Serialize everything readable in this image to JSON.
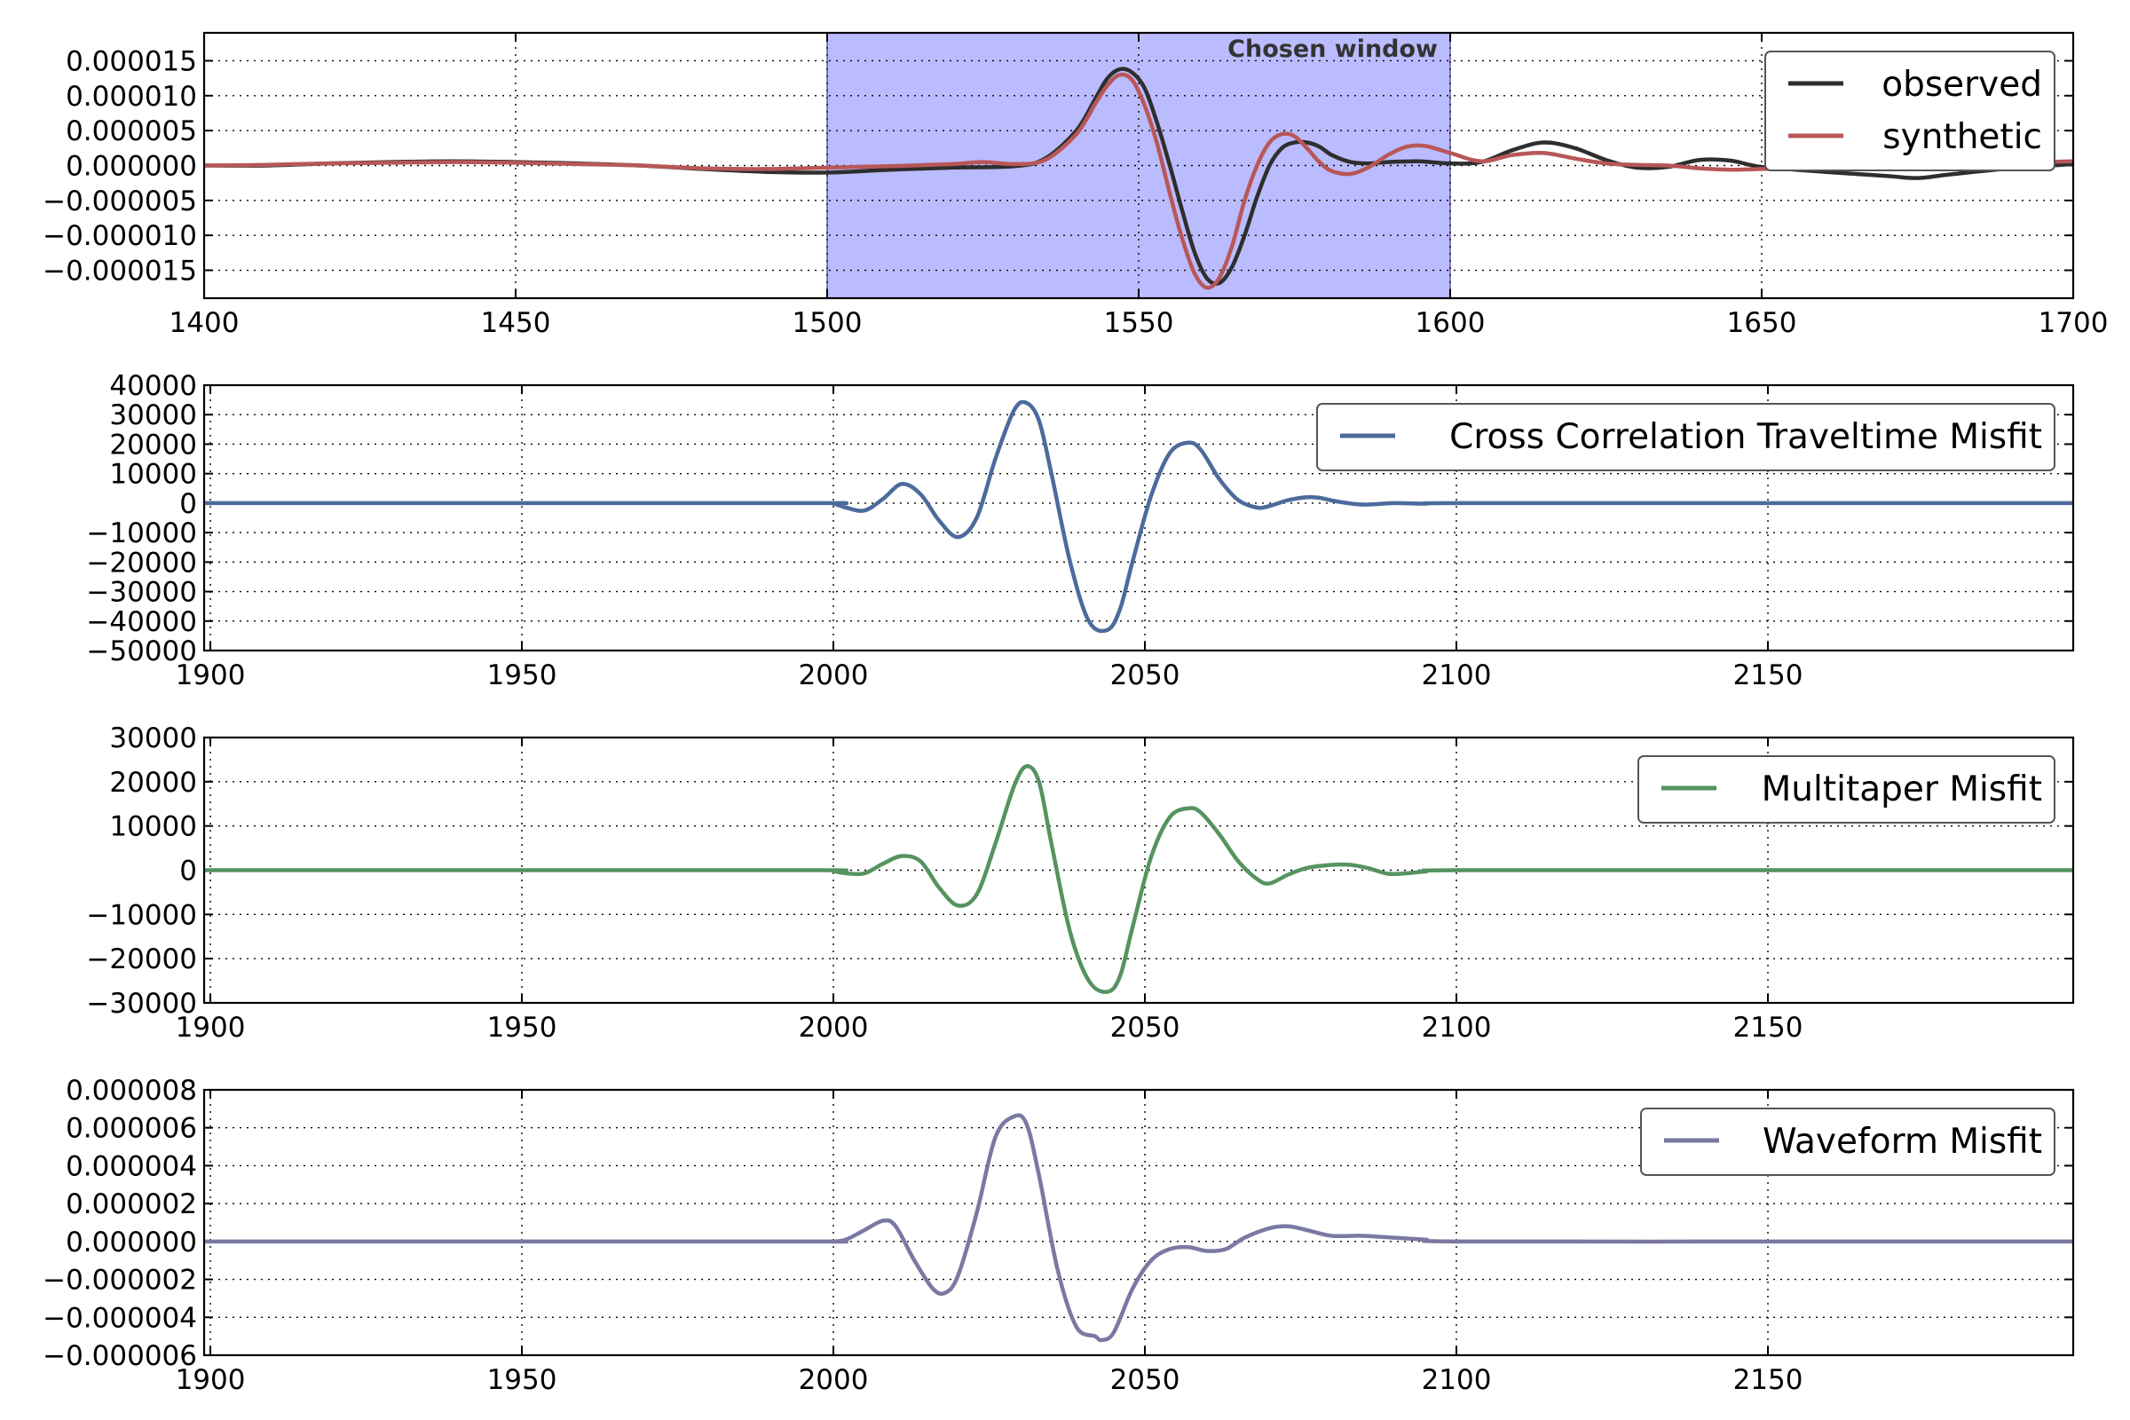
{
  "chart_data": [
    {
      "type": "line",
      "title": "",
      "xlabel": "",
      "ylabel": "",
      "xlim": [
        1400,
        1700
      ],
      "ylim": [
        -1.9e-05,
        1.9e-05
      ],
      "xticks": [
        1400,
        1450,
        1500,
        1550,
        1600,
        1650,
        1700
      ],
      "xtick_labels": [
        "1400",
        "1450",
        "1500",
        "1550",
        "1600",
        "1650",
        "1700"
      ],
      "yticks": [
        1.5e-05,
        1e-05,
        5e-06,
        0,
        -5e-06,
        -1e-05,
        -1.5e-05
      ],
      "ytick_labels": [
        "0.000015",
        "0.000010",
        "0.000005",
        "0.000000",
        "−0.000005",
        "−0.000010",
        "−0.000015"
      ],
      "grid": true,
      "legend_position": "top-right",
      "window": {
        "x0": 1500,
        "x1": 1600,
        "label": "Chosen window",
        "color": "#bbbbff"
      },
      "series": [
        {
          "name": "observed",
          "color": "#2e2e2e",
          "x": [
            1400,
            1410,
            1420,
            1430,
            1440,
            1450,
            1460,
            1470,
            1480,
            1490,
            1500,
            1510,
            1520,
            1530,
            1535,
            1540,
            1543,
            1545,
            1547,
            1549,
            1551,
            1553,
            1555,
            1557,
            1559,
            1561,
            1563,
            1565,
            1567,
            1569,
            1571,
            1573,
            1575,
            1577,
            1579,
            1581,
            1584,
            1587,
            1590,
            1595,
            1600,
            1605,
            1610,
            1615,
            1620,
            1625,
            1630,
            1635,
            1640,
            1645,
            1650,
            1660,
            1670,
            1675,
            1680,
            1690,
            1700
          ],
          "y": [
            0,
            0,
            3e-07,
            5e-07,
            6e-07,
            5e-07,
            3e-07,
            0,
            -5e-07,
            -9e-07,
            -1e-06,
            -6e-07,
            -3e-07,
            -1e-07,
            1e-06,
            5e-06,
            9.5e-06,
            1.25e-05,
            1.38e-05,
            1.33e-05,
            1.1e-05,
            6e-06,
            0,
            -6.5e-06,
            -1.25e-05,
            -1.62e-05,
            -1.68e-05,
            -1.45e-05,
            -1e-05,
            -4.5e-06,
            0,
            2.5e-06,
            3.3e-06,
            3.3e-06,
            2.7e-06,
            1.5e-06,
            5e-07,
            3e-07,
            5e-07,
            6e-07,
            3e-07,
            5e-07,
            2.2e-06,
            3.3e-06,
            2.5e-06,
            8e-07,
            -3e-07,
            -2e-07,
            8e-07,
            7e-07,
            -2e-07,
            -9e-07,
            -1.5e-06,
            -1.8e-06,
            -1.3e-06,
            -4e-07,
            2e-07
          ]
        },
        {
          "name": "synthetic",
          "color": "#b85757",
          "x": [
            1400,
            1410,
            1420,
            1430,
            1440,
            1450,
            1460,
            1470,
            1480,
            1490,
            1500,
            1510,
            1520,
            1525,
            1530,
            1535,
            1540,
            1543,
            1545,
            1547,
            1549,
            1551,
            1553,
            1555,
            1557,
            1559,
            1561,
            1563,
            1565,
            1567,
            1569,
            1571,
            1573,
            1575,
            1577,
            1579,
            1581,
            1584,
            1587,
            1590,
            1593,
            1596,
            1600,
            1605,
            1610,
            1615,
            1620,
            1625,
            1630,
            1635,
            1640,
            1645,
            1650,
            1660,
            1670,
            1680,
            1690,
            1700
          ],
          "y": [
            0,
            1e-07,
            3e-07,
            4e-07,
            5e-07,
            4e-07,
            2e-07,
            0,
            -4e-07,
            -5e-07,
            -3e-07,
            -1e-07,
            2e-07,
            5e-07,
            2e-07,
            8e-07,
            4.5e-06,
            8.8e-06,
            1.15e-05,
            1.3e-05,
            1.22e-05,
            8.5e-06,
            3e-06,
            -4e-06,
            -1.05e-05,
            -1.55e-05,
            -1.75e-05,
            -1.6e-05,
            -1.15e-05,
            -5e-06,
            0,
            3.3e-06,
            4.5e-06,
            4.2e-06,
            2.5e-06,
            5e-07,
            -8e-07,
            -1.2e-06,
            -2e-07,
            1.5e-06,
            2.7e-06,
            2.8e-06,
            1.8e-06,
            6e-07,
            1.5e-06,
            1.8e-06,
            1e-06,
            3e-07,
            1e-07,
            0,
            -4e-07,
            -6e-07,
            -5e-07,
            -3e-07,
            -4e-07,
            1e-07,
            4e-07,
            6e-07
          ]
        }
      ]
    },
    {
      "type": "line",
      "title": "",
      "xlabel": "",
      "ylabel": "",
      "xlim": [
        1899,
        2199
      ],
      "ylim": [
        -50000,
        40000
      ],
      "xticks": [
        1900,
        1950,
        2000,
        2050,
        2100,
        2150
      ],
      "xtick_labels": [
        "1900",
        "1950",
        "2000",
        "2050",
        "2100",
        "2150"
      ],
      "yticks": [
        40000,
        30000,
        20000,
        10000,
        0,
        -10000,
        -20000,
        -30000,
        -40000,
        -50000
      ],
      "ytick_labels": [
        "40000",
        "30000",
        "20000",
        "10000",
        "0",
        "−10000",
        "−20000",
        "−30000",
        "−40000",
        "−50000"
      ],
      "grid": true,
      "legend_position": "top-right",
      "series": [
        {
          "name": "Cross Correlation Traveltime Misfit",
          "color": "#4c6b9c",
          "x": [
            1899,
            1950,
            1998,
            2000,
            2002,
            2005,
            2008,
            2011,
            2014,
            2017,
            2020,
            2023,
            2026,
            2029,
            2031,
            2033,
            2035,
            2038,
            2041,
            2044,
            2046,
            2048,
            2051,
            2054,
            2057,
            2059,
            2062,
            2065,
            2068,
            2070,
            2073,
            2076,
            2078,
            2081,
            2085,
            2090,
            2095,
            2100,
            2150,
            2199
          ],
          "y": [
            0,
            0,
            0,
            -200,
            -1500,
            -2500,
            1500,
            6500,
            3000,
            -6000,
            -11500,
            -5000,
            15000,
            31500,
            34000,
            28000,
            10000,
            -20000,
            -40000,
            -43000,
            -36000,
            -20000,
            2500,
            17000,
            20500,
            18000,
            8000,
            1000,
            -1500,
            -1000,
            1000,
            2000,
            1800,
            500,
            -500,
            0,
            -200,
            0,
            0,
            0
          ]
        }
      ]
    },
    {
      "type": "line",
      "title": "",
      "xlabel": "",
      "ylabel": "",
      "xlim": [
        1899,
        2199
      ],
      "ylim": [
        -30000,
        30000
      ],
      "xticks": [
        1900,
        1950,
        2000,
        2050,
        2100,
        2150
      ],
      "xtick_labels": [
        "1900",
        "1950",
        "2000",
        "2050",
        "2100",
        "2150"
      ],
      "yticks": [
        30000,
        20000,
        10000,
        0,
        -10000,
        -20000,
        -30000
      ],
      "ytick_labels": [
        "30000",
        "20000",
        "10000",
        "0",
        "−10000",
        "−20000",
        "−30000"
      ],
      "grid": true,
      "legend_position": "top-right",
      "series": [
        {
          "name": "Multitaper Misfit",
          "color": "#55935f",
          "x": [
            1899,
            1950,
            1998,
            2000,
            2002,
            2005,
            2008,
            2011,
            2014,
            2017,
            2020,
            2023,
            2026,
            2029,
            2031,
            2033,
            2035,
            2038,
            2041,
            2044,
            2046,
            2048,
            2051,
            2054,
            2057,
            2059,
            2062,
            2065,
            2068,
            2070,
            2073,
            2076,
            2080,
            2083,
            2086,
            2089,
            2092,
            2095,
            2100,
            2150,
            2199
          ],
          "y": [
            0,
            0,
            0,
            -200,
            -700,
            -700,
            1500,
            3200,
            2000,
            -4000,
            -8000,
            -5500,
            6000,
            19000,
            23500,
            20000,
            6000,
            -14000,
            -25000,
            -27500,
            -24000,
            -13000,
            3000,
            12000,
            14000,
            13000,
            8000,
            2000,
            -2000,
            -3000,
            -1000,
            500,
            1200,
            1200,
            400,
            -800,
            -700,
            -300,
            0,
            0,
            0
          ]
        }
      ]
    },
    {
      "type": "line",
      "title": "",
      "xlabel": "",
      "ylabel": "",
      "xlim": [
        1899,
        2199
      ],
      "ylim": [
        -6e-06,
        8e-06
      ],
      "xticks": [
        1900,
        1950,
        2000,
        2050,
        2100,
        2150
      ],
      "xtick_labels": [
        "1900",
        "1950",
        "2000",
        "2050",
        "2100",
        "2150"
      ],
      "yticks": [
        8e-06,
        6e-06,
        4e-06,
        2e-06,
        0,
        -2e-06,
        -4e-06,
        -6e-06
      ],
      "ytick_labels": [
        "0.000008",
        "0.000006",
        "0.000004",
        "0.000002",
        "0.000000",
        "−0.000002",
        "−0.000004",
        "−0.000006"
      ],
      "grid": true,
      "legend_position": "top-right",
      "series": [
        {
          "name": "Waveform Misfit",
          "color": "#7a79a3",
          "x": [
            1899,
            1950,
            1998,
            2000,
            2002,
            2005,
            2008,
            2010,
            2013,
            2016,
            2018,
            2020,
            2023,
            2026,
            2029,
            2031,
            2033,
            2036,
            2039,
            2042,
            2043,
            2045,
            2048,
            2051,
            2054,
            2057,
            2060,
            2063,
            2066,
            2070,
            2073,
            2076,
            2080,
            2085,
            2090,
            2095,
            2100,
            2150,
            2199
          ],
          "y": [
            0,
            0,
            0,
            0,
            1e-07,
            6e-07,
            1.1e-06,
            8e-07,
            -1e-06,
            -2.5e-06,
            -2.7e-06,
            -1.8e-06,
            1.5e-06,
            5.5e-06,
            6.6e-06,
            6.2e-06,
            3.5e-06,
            -1.5e-06,
            -4.5e-06,
            -5e-06,
            -5.2e-06,
            -4.8e-06,
            -2.5e-06,
            -1e-06,
            -4e-07,
            -3e-07,
            -5e-07,
            -4e-07,
            2e-07,
            7e-07,
            8e-07,
            6e-07,
            3e-07,
            3e-07,
            2e-07,
            1e-07,
            0,
            0,
            0
          ]
        }
      ]
    }
  ]
}
